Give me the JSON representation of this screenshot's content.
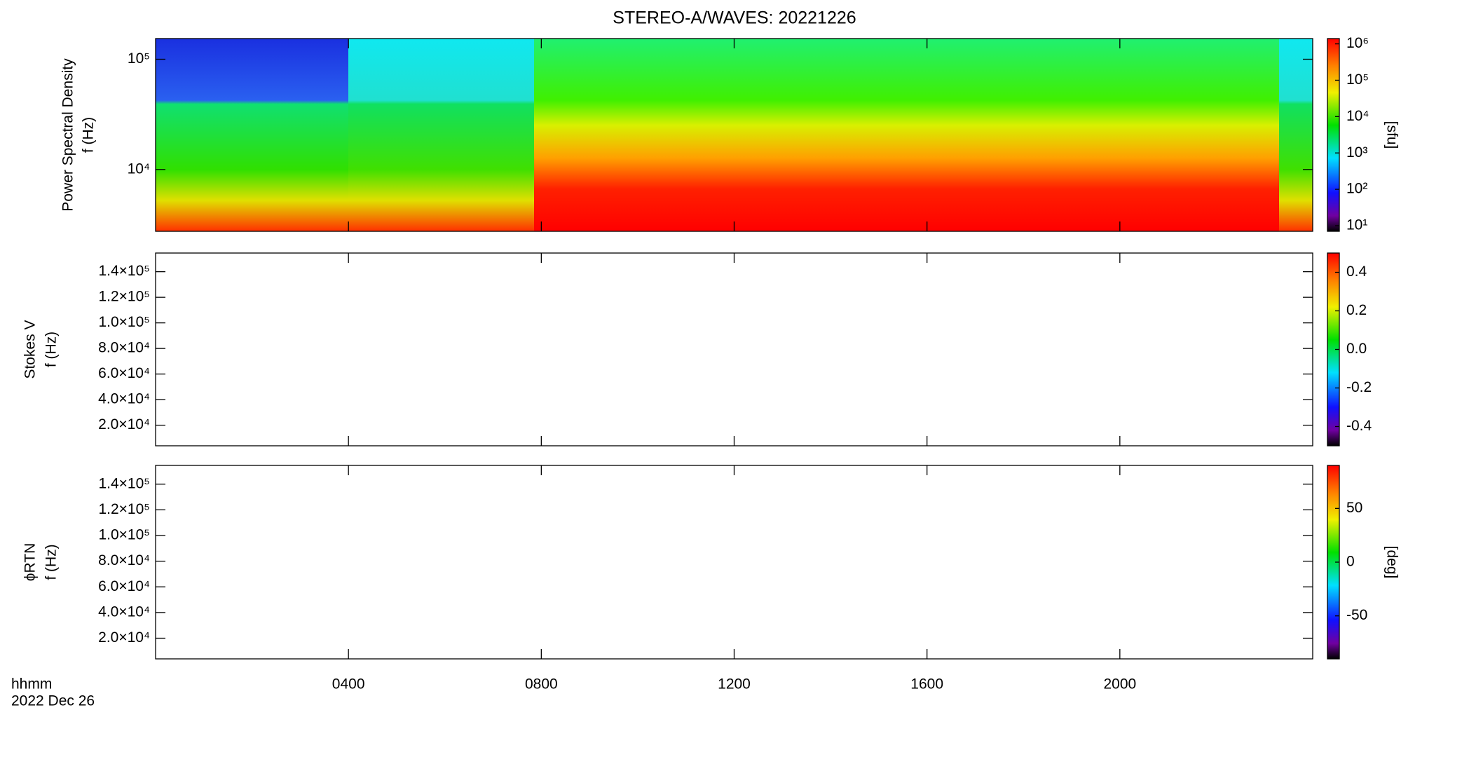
{
  "chart_data": [
    {
      "type": "heatmap",
      "title": "STEREO-A/WAVES: 20221226",
      "ylabel": [
        "Power Spectral Density",
        "f (Hz)"
      ],
      "xlim": [
        0,
        24
      ],
      "xticks": [
        4,
        8,
        12,
        16,
        20
      ],
      "ylim": [
        2750,
        154000
      ],
      "ylog": true,
      "yticks": [
        {
          "value": 10000,
          "label": "10⁴"
        },
        {
          "value": 100000,
          "label": "10⁵"
        }
      ],
      "colorbar": {
        "lim": [
          7,
          1400000
        ],
        "log": true,
        "label": "[sfu]",
        "ticks": [
          {
            "value": 10,
            "label": "10¹"
          },
          {
            "value": 100,
            "label": "10²"
          },
          {
            "value": 1000,
            "label": "10³"
          },
          {
            "value": 10000,
            "label": "10⁴"
          },
          {
            "value": 100000,
            "label": "10⁵"
          },
          {
            "value": 1000000,
            "label": "10⁶"
          }
        ]
      }
    },
    {
      "type": "heatmap",
      "ylabel": [
        "Stokes V",
        "f (Hz)"
      ],
      "xlim": [
        0,
        24
      ],
      "xticks": [
        4,
        8,
        12,
        16,
        20
      ],
      "ylim": [
        3900,
        154600
      ],
      "yticks": [
        {
          "value": 20000,
          "label": "2.0×10⁴"
        },
        {
          "value": 40000,
          "label": "4.0×10⁴"
        },
        {
          "value": 60000,
          "label": "6.0×10⁴"
        },
        {
          "value": 80000,
          "label": "8.0×10⁴"
        },
        {
          "value": 100000,
          "label": "1.0×10⁵"
        },
        {
          "value": 120000,
          "label": "1.2×10⁵"
        },
        {
          "value": 140000,
          "label": "1.4×10⁵"
        }
      ],
      "colorbar": {
        "lim": [
          -0.5,
          0.5
        ],
        "label": null,
        "ticks": [
          {
            "value": -0.4,
            "label": "-0.4"
          },
          {
            "value": -0.2,
            "label": "-0.2"
          },
          {
            "value": 0,
            "label": "0.0"
          },
          {
            "value": 0.2,
            "label": "0.2"
          },
          {
            "value": 0.4,
            "label": "0.4"
          }
        ]
      }
    },
    {
      "type": "heatmap",
      "ylabel": [
        "ϕRTN",
        "f (Hz)"
      ],
      "xlim": [
        0,
        24
      ],
      "xticks": [
        {
          "value": 4,
          "label": "0400"
        },
        {
          "value": 8,
          "label": "0800"
        },
        {
          "value": 12,
          "label": "1200"
        },
        {
          "value": 16,
          "label": "1600"
        },
        {
          "value": 20,
          "label": "2000"
        }
      ],
      "xlabel": [
        "hhmm",
        "2022 Dec 26"
      ],
      "ylim": [
        3900,
        154600
      ],
      "yticks": [
        {
          "value": 20000,
          "label": "2.0×10⁴"
        },
        {
          "value": 40000,
          "label": "4.0×10⁴"
        },
        {
          "value": 60000,
          "label": "6.0×10⁴"
        },
        {
          "value": 80000,
          "label": "8.0×10⁴"
        },
        {
          "value": 100000,
          "label": "1.0×10⁵"
        },
        {
          "value": 120000,
          "label": "1.2×10⁵"
        },
        {
          "value": 140000,
          "label": "1.4×10⁵"
        }
      ],
      "colorbar": {
        "lim": [
          -90,
          90
        ],
        "label": "[deg]",
        "ticks": [
          -50,
          0,
          50
        ]
      }
    }
  ]
}
